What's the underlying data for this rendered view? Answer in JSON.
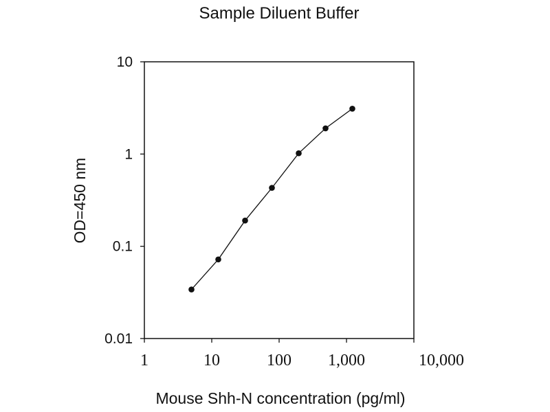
{
  "chart_data": {
    "type": "line",
    "title": "Sample Diluent Buffer",
    "xlabel": "Mouse Shh-N concentration (pg/ml)",
    "ylabel": "OD=450 nm",
    "xscale": "log",
    "yscale": "log",
    "xlim": [
      1,
      10000
    ],
    "ylim": [
      0.01,
      10
    ],
    "x_ticks": [
      1,
      10,
      100,
      1000,
      10000
    ],
    "x_tick_labels": [
      "1",
      "10",
      "100",
      "1,000",
      "10,000"
    ],
    "y_ticks": [
      0.01,
      0.1,
      1,
      10
    ],
    "y_tick_labels": [
      "0.01",
      "0.1",
      "1",
      "10"
    ],
    "grid": false,
    "marker": "circle",
    "line_color": "#111111",
    "series": [
      {
        "x": [
          5,
          12.5,
          31.25,
          78.125,
          195.3,
          488.3,
          1220.7
        ],
        "y": [
          0.034,
          0.072,
          0.19,
          0.43,
          1.02,
          1.9,
          3.1
        ]
      }
    ]
  }
}
